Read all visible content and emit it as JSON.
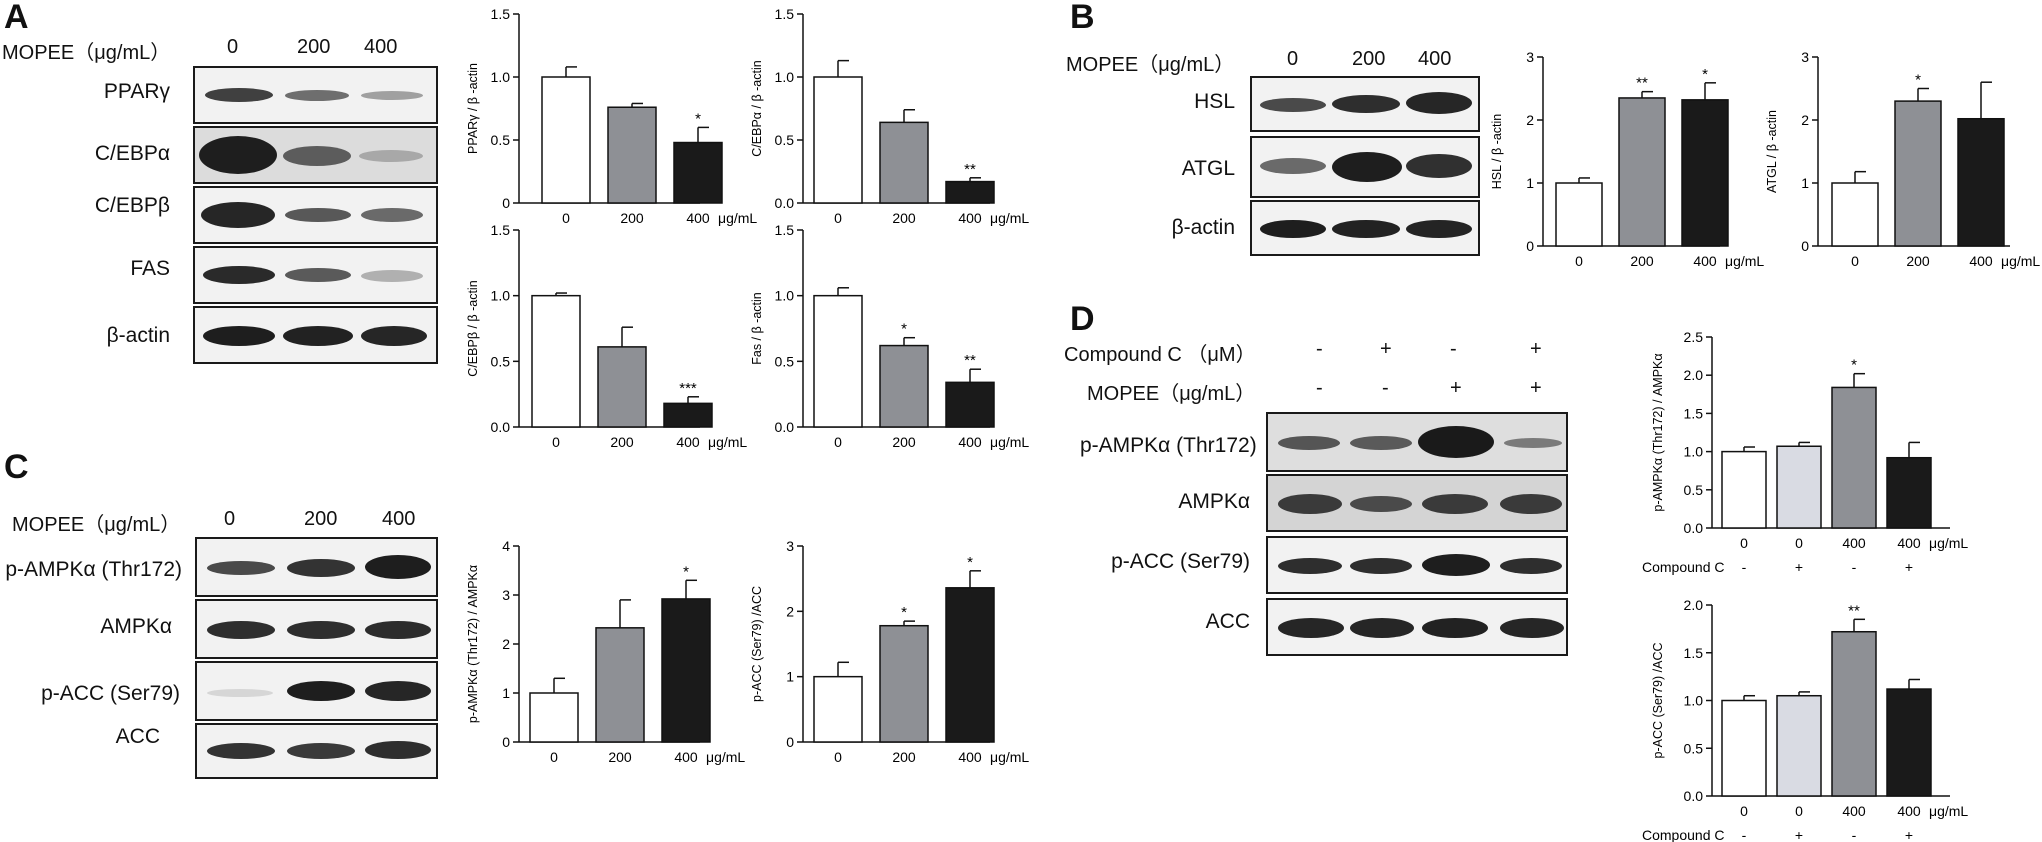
{
  "panels": {
    "A": {
      "letter": "A",
      "treatment_label": "MOPEE（μg/mL）",
      "doses": [
        "0",
        "200",
        "400"
      ],
      "rows": [
        "PPARγ",
        "C/EBPα",
        "C/EBPβ",
        "FAS",
        "β-actin"
      ]
    },
    "B": {
      "letter": "B",
      "treatment_label": "MOPEE（μg/mL）",
      "doses": [
        "0",
        "200",
        "400"
      ],
      "rows": [
        "HSL",
        "ATGL",
        "β-actin"
      ]
    },
    "C": {
      "letter": "C",
      "treatment_label": "MOPEE（μg/mL）",
      "doses": [
        "0",
        "200",
        "400"
      ],
      "rows": [
        "p-AMPKα (Thr172)",
        "AMPKα",
        "p-ACC (Ser79)",
        "ACC"
      ]
    },
    "D": {
      "letter": "D",
      "compound_label": "Compound C （μM）",
      "compound_signs": [
        "-",
        "+",
        "-",
        "+"
      ],
      "mopee_label": "MOPEE（μg/mL）",
      "mopee_signs": [
        "-",
        "-",
        "+",
        "+"
      ],
      "rows": [
        "p-AMPKα (Thr172)",
        "AMPKα",
        "p-ACC (Ser79)",
        "ACC"
      ]
    }
  },
  "chart_data": [
    {
      "id": "A-pparg",
      "type": "bar",
      "ylabel": "PPARγ / β -actin",
      "categories": [
        "0",
        "200",
        "400"
      ],
      "unit": "μg/mL",
      "values": [
        1.0,
        0.76,
        0.48
      ],
      "errors": [
        0.08,
        0.03,
        0.12
      ],
      "sig": [
        "",
        "",
        "*"
      ],
      "ylim": [
        0,
        1.5
      ],
      "yticks": [
        "0",
        "0.5",
        "1.0",
        "1.5"
      ],
      "colors": [
        "#ffffff",
        "#8e9095",
        "#1a1a1a"
      ]
    },
    {
      "id": "A-cebpa",
      "type": "bar",
      "ylabel": "C/EBPα / β -actin",
      "categories": [
        "0",
        "200",
        "400"
      ],
      "unit": "μg/mL",
      "values": [
        1.0,
        0.64,
        0.17
      ],
      "errors": [
        0.13,
        0.1,
        0.03
      ],
      "sig": [
        "",
        "",
        "**"
      ],
      "ylim": [
        0,
        1.5
      ],
      "yticks": [
        "0.0",
        "0.5",
        "1.0",
        "1.5"
      ],
      "colors": [
        "#ffffff",
        "#8e9095",
        "#1a1a1a"
      ]
    },
    {
      "id": "A-cebpb",
      "type": "bar",
      "ylabel": "C/EBPβ / β -actin",
      "categories": [
        "0",
        "200",
        "400"
      ],
      "unit": "μg/mL",
      "values": [
        1.0,
        0.61,
        0.18
      ],
      "errors": [
        0.02,
        0.15,
        0.05
      ],
      "sig": [
        "",
        "",
        "***"
      ],
      "ylim": [
        0,
        1.5
      ],
      "yticks": [
        "0.0",
        "0.5",
        "1.0",
        "1.5"
      ],
      "colors": [
        "#ffffff",
        "#8e9095",
        "#1a1a1a"
      ]
    },
    {
      "id": "A-fas",
      "type": "bar",
      "ylabel": "Fas / β -actin",
      "categories": [
        "0",
        "200",
        "400"
      ],
      "unit": "μg/mL",
      "values": [
        1.0,
        0.62,
        0.34
      ],
      "errors": [
        0.06,
        0.06,
        0.1
      ],
      "sig": [
        "",
        "*",
        "**"
      ],
      "ylim": [
        0,
        1.5
      ],
      "yticks": [
        "0.0",
        "0.5",
        "1.0",
        "1.5"
      ],
      "colors": [
        "#ffffff",
        "#8e9095",
        "#1a1a1a"
      ]
    },
    {
      "id": "B-hsl",
      "type": "bar",
      "ylabel": "HSL / β -actin",
      "categories": [
        "0",
        "200",
        "400"
      ],
      "unit": "μg/mL",
      "values": [
        1.0,
        2.35,
        2.32
      ],
      "errors": [
        0.08,
        0.1,
        0.27
      ],
      "sig": [
        "",
        "**",
        "*"
      ],
      "ylim": [
        0,
        3
      ],
      "yticks": [
        "0",
        "1",
        "2",
        "3"
      ],
      "colors": [
        "#ffffff",
        "#8e9095",
        "#1a1a1a"
      ]
    },
    {
      "id": "B-atgl",
      "type": "bar",
      "ylabel": "ATGL / β -actin",
      "categories": [
        "0",
        "200",
        "400"
      ],
      "unit": "μg/mL",
      "values": [
        1.0,
        2.3,
        2.02
      ],
      "errors": [
        0.18,
        0.2,
        0.58
      ],
      "sig": [
        "",
        "*",
        ""
      ],
      "ylim": [
        0,
        3
      ],
      "yticks": [
        "0",
        "1",
        "2",
        "3"
      ],
      "colors": [
        "#ffffff",
        "#8e9095",
        "#1a1a1a"
      ]
    },
    {
      "id": "C-pampk",
      "type": "bar",
      "ylabel": "p-AMPKα (Thr172) / AMPKα",
      "categories": [
        "0",
        "200",
        "400"
      ],
      "unit": "μg/mL",
      "values": [
        1.0,
        2.33,
        2.92
      ],
      "errors": [
        0.3,
        0.57,
        0.38
      ],
      "sig": [
        "",
        "",
        "*"
      ],
      "ylim": [
        0,
        4
      ],
      "yticks": [
        "0",
        "1",
        "2",
        "3",
        "4"
      ],
      "colors": [
        "#ffffff",
        "#8e9095",
        "#1a1a1a"
      ]
    },
    {
      "id": "C-pacc",
      "type": "bar",
      "ylabel": "p-ACC (Ser79) /ACC",
      "categories": [
        "0",
        "200",
        "400"
      ],
      "unit": "μg/mL",
      "values": [
        1.0,
        1.78,
        2.36
      ],
      "errors": [
        0.22,
        0.07,
        0.26
      ],
      "sig": [
        "",
        "*",
        "*"
      ],
      "ylim": [
        0,
        3
      ],
      "yticks": [
        "0",
        "1",
        "2",
        "3"
      ],
      "colors": [
        "#ffffff",
        "#8e9095",
        "#1a1a1a"
      ]
    },
    {
      "id": "D-pampk",
      "type": "bar",
      "ylabel": "p-AMPKα (Thr172) / AMPKα",
      "categories": [
        "0",
        "0",
        "400",
        "400"
      ],
      "unit": "μg/mL",
      "compound_label": "Compound C",
      "compound_signs": [
        "-",
        "+",
        "-",
        "+"
      ],
      "values": [
        1.0,
        1.07,
        1.84,
        0.92
      ],
      "errors": [
        0.06,
        0.05,
        0.18,
        0.2
      ],
      "sig": [
        "",
        "",
        "*",
        ""
      ],
      "ylim": [
        0,
        2.5
      ],
      "yticks": [
        "0.0",
        "0.5",
        "1.0",
        "1.5",
        "2.0",
        "2.5"
      ],
      "colors": [
        "#ffffff",
        "#d9dbe3",
        "#8e9095",
        "#1a1a1a"
      ]
    },
    {
      "id": "D-pacc",
      "type": "bar",
      "ylabel": "p-ACC (Ser79) /ACC",
      "categories": [
        "0",
        "0",
        "400",
        "400"
      ],
      "unit": "μg/mL",
      "compound_label": "Compound C",
      "compound_signs": [
        "-",
        "+",
        "-",
        "+"
      ],
      "values": [
        1.0,
        1.05,
        1.72,
        1.12
      ],
      "errors": [
        0.05,
        0.04,
        0.13,
        0.1
      ],
      "sig": [
        "",
        "",
        "**",
        ""
      ],
      "ylim": [
        0,
        2.0
      ],
      "yticks": [
        "0.0",
        "0.5",
        "1.0",
        "1.5",
        "2.0"
      ],
      "colors": [
        "#ffffff",
        "#d9dbe3",
        "#8e9095",
        "#1a1a1a"
      ]
    }
  ]
}
